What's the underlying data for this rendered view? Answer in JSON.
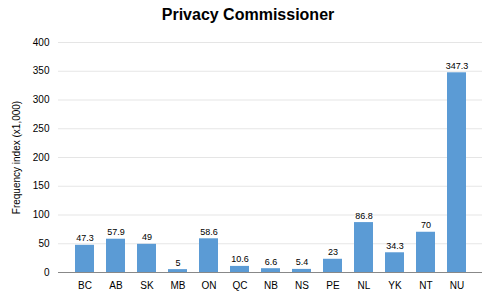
{
  "chart_data": {
    "type": "bar",
    "title": "Privacy Commissioner",
    "categories": [
      "BC",
      "AB",
      "SK",
      "MB",
      "ON",
      "QC",
      "NB",
      "NS",
      "PE",
      "NL",
      "YK",
      "NT",
      "NU"
    ],
    "values": [
      47.3,
      57.9,
      49,
      5,
      58.6,
      10.6,
      6.6,
      5.4,
      23,
      86.8,
      34.3,
      70,
      347.3
    ],
    "color": "#5b9bd5",
    "ylabel": "Frequency index (x1,000)",
    "ylim": [
      0,
      400
    ],
    "yticks": [
      0,
      50,
      100,
      150,
      200,
      250,
      300,
      350,
      400
    ],
    "grid": true,
    "data_labels": true
  }
}
